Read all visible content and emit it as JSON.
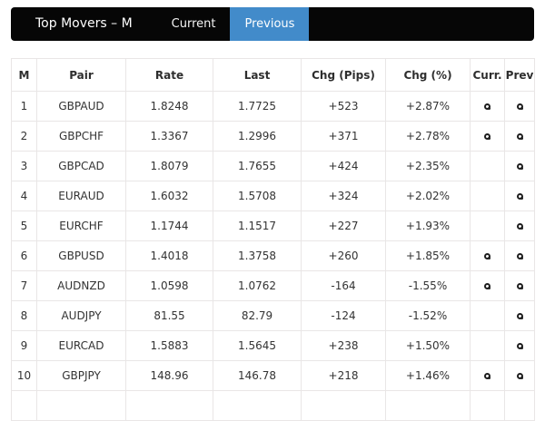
{
  "navbar": {
    "brand": "Top Movers – M",
    "tabs": [
      {
        "label": "Current",
        "active": false
      },
      {
        "label": "Previous",
        "active": true
      }
    ],
    "active_tab_color": "#428bca",
    "bar_color": "#060606"
  },
  "table": {
    "columns": [
      "M",
      "Pair",
      "Rate",
      "Last",
      "Chg (Pips)",
      "Chg (%)",
      "Curr.",
      "Prev"
    ],
    "icon_name": "bullseye-icon",
    "rows": [
      {
        "m": "1",
        "pair": "GBPAUD",
        "rate": "1.8248",
        "last": "1.7725",
        "chg_pips": "+523",
        "chg_pct": "+2.87%",
        "curr": true,
        "prev": true
      },
      {
        "m": "2",
        "pair": "GBPCHF",
        "rate": "1.3367",
        "last": "1.2996",
        "chg_pips": "+371",
        "chg_pct": "+2.78%",
        "curr": true,
        "prev": true
      },
      {
        "m": "3",
        "pair": "GBPCAD",
        "rate": "1.8079",
        "last": "1.7655",
        "chg_pips": "+424",
        "chg_pct": "+2.35%",
        "curr": false,
        "prev": true
      },
      {
        "m": "4",
        "pair": "EURAUD",
        "rate": "1.6032",
        "last": "1.5708",
        "chg_pips": "+324",
        "chg_pct": "+2.02%",
        "curr": false,
        "prev": true
      },
      {
        "m": "5",
        "pair": "EURCHF",
        "rate": "1.1744",
        "last": "1.1517",
        "chg_pips": "+227",
        "chg_pct": "+1.93%",
        "curr": false,
        "prev": true
      },
      {
        "m": "6",
        "pair": "GBPUSD",
        "rate": "1.4018",
        "last": "1.3758",
        "chg_pips": "+260",
        "chg_pct": "+1.85%",
        "curr": true,
        "prev": true
      },
      {
        "m": "7",
        "pair": "AUDNZD",
        "rate": "1.0598",
        "last": "1.0762",
        "chg_pips": "-164",
        "chg_pct": "-1.55%",
        "curr": true,
        "prev": true
      },
      {
        "m": "8",
        "pair": "AUDJPY",
        "rate": "81.55",
        "last": "82.79",
        "chg_pips": "-124",
        "chg_pct": "-1.52%",
        "curr": false,
        "prev": true
      },
      {
        "m": "9",
        "pair": "EURCAD",
        "rate": "1.5883",
        "last": "1.5645",
        "chg_pips": "+238",
        "chg_pct": "+1.50%",
        "curr": false,
        "prev": true
      },
      {
        "m": "10",
        "pair": "GBPJPY",
        "rate": "148.96",
        "last": "146.78",
        "chg_pips": "+218",
        "chg_pct": "+1.46%",
        "curr": true,
        "prev": true
      }
    ]
  }
}
